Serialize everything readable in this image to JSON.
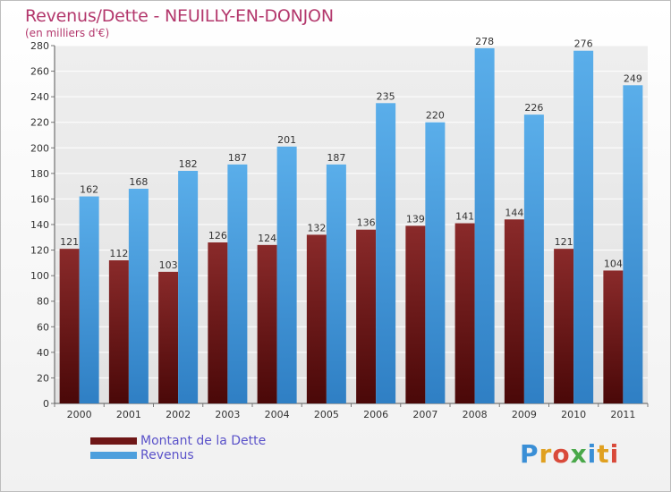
{
  "header": {
    "title": "Revenus/Dette - NEUILLY-EN-DONJON",
    "subtitle": "(en milliers d'€)"
  },
  "colors": {
    "dette": "#6e1616",
    "revenus": "#4d9fdd",
    "title": "#b3376c",
    "legend_text": "#5a52c9"
  },
  "legend": {
    "items": [
      {
        "label": "Montant de la Dette",
        "color": "#6e1616"
      },
      {
        "label": "Revenus",
        "color": "#4d9fdd"
      }
    ]
  },
  "logo": {
    "text": "Proxiti"
  },
  "chart_data": {
    "type": "bar",
    "categories": [
      "2000",
      "2001",
      "2002",
      "2003",
      "2004",
      "2005",
      "2006",
      "2007",
      "2008",
      "2009",
      "2010",
      "2011"
    ],
    "series": [
      {
        "name": "Montant de la Dette",
        "values": [
          121,
          112,
          103,
          126,
          124,
          132,
          136,
          139,
          141,
          144,
          121,
          104
        ]
      },
      {
        "name": "Revenus",
        "values": [
          162,
          168,
          182,
          187,
          201,
          187,
          235,
          220,
          278,
          226,
          276,
          249
        ]
      }
    ],
    "title": "Revenus/Dette - NEUILLY-EN-DONJON",
    "ylabel": "(en milliers d'€)",
    "ylim": [
      0,
      280
    ],
    "ytick_step": 20,
    "grid": true,
    "legend_position": "bottom-left"
  }
}
